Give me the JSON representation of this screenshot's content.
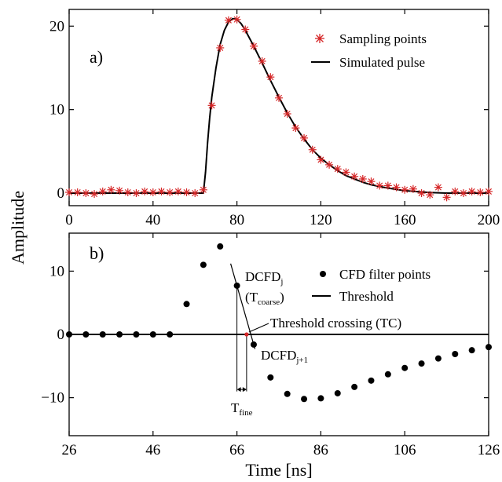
{
  "chart_data": [
    {
      "type": "scatter",
      "panel_label": "a)",
      "xlim": [
        0,
        200
      ],
      "ylim": [
        -1.5,
        22
      ],
      "xticks": [
        "0",
        "40",
        "80",
        "120",
        "160",
        "200"
      ],
      "yticks": [
        "0",
        "10",
        "20"
      ],
      "legend_position": "top-right",
      "series": [
        {
          "name": "Sampling points",
          "marker": "asterisk",
          "color": "#d62728",
          "x": [
            0,
            4,
            8,
            12,
            16,
            20,
            24,
            28,
            32,
            36,
            40,
            44,
            48,
            52,
            56,
            60,
            64,
            68,
            72,
            76,
            80,
            84,
            88,
            92,
            96,
            100,
            104,
            108,
            112,
            116,
            120,
            124,
            128,
            132,
            136,
            140,
            144,
            148,
            152,
            156,
            160,
            164,
            168,
            172,
            176,
            180,
            184,
            188,
            192,
            196,
            200
          ],
          "y": [
            0.1,
            0.1,
            0,
            -0.1,
            0.2,
            0.4,
            0.3,
            0.1,
            0,
            0.2,
            0.1,
            0.2,
            0.1,
            0.2,
            0.1,
            0,
            0.4,
            10.5,
            17.4,
            20.7,
            20.8,
            19.6,
            17.6,
            15.8,
            13.9,
            11.4,
            9.5,
            7.8,
            6.6,
            5.2,
            4.0,
            3.4,
            2.9,
            2.5,
            2.0,
            1.7,
            1.4,
            0.9,
            0.9,
            0.7,
            0.4,
            0.5,
            0,
            -0.2,
            0.7,
            -0.5,
            0.2,
            0,
            0.2,
            0.1,
            0.2
          ]
        },
        {
          "name": "Simulated pulse",
          "line": "solid",
          "color": "#000000",
          "x": [
            0,
            64,
            65,
            66,
            67,
            68,
            70,
            72,
            74,
            76,
            78,
            80,
            82,
            84,
            88,
            92,
            96,
            100,
            104,
            108,
            112,
            116,
            120,
            124,
            128,
            132,
            136,
            140,
            144,
            150,
            156,
            160,
            166,
            172,
            180,
            190,
            200
          ],
          "y": [
            0,
            0,
            2.5,
            6,
            9,
            11.5,
            15,
            17.8,
            19.5,
            20.5,
            20.9,
            20.8,
            20.3,
            19.5,
            17.6,
            15.6,
            13.5,
            11.5,
            9.6,
            7.9,
            6.5,
            5.2,
            4.2,
            3.4,
            2.7,
            2.1,
            1.7,
            1.3,
            1.0,
            0.7,
            0.45,
            0.3,
            0.18,
            0.08,
            0,
            0,
            0
          ]
        }
      ]
    },
    {
      "type": "scatter",
      "panel_label": "b)",
      "xlim": [
        26,
        126
      ],
      "ylim": [
        -16,
        16
      ],
      "xticks": [
        "26",
        "46",
        "66",
        "86",
        "106",
        "126"
      ],
      "yticks": [
        "−10",
        "0",
        "10"
      ],
      "xlabel": "Time [ns]",
      "legend_position": "top-right",
      "series": [
        {
          "name": "CFD filter points",
          "marker": "dot",
          "color": "#000000",
          "x": [
            26,
            30,
            34,
            38,
            42,
            46,
            50,
            54,
            58,
            62,
            66,
            70,
            74,
            78,
            82,
            86,
            90,
            94,
            98,
            102,
            106,
            110,
            114,
            118,
            122,
            126
          ],
          "y": [
            0,
            0,
            0,
            0,
            0,
            0,
            0,
            4.8,
            11,
            13.9,
            7.7,
            -1.6,
            -6.8,
            -9.4,
            -10.2,
            -10.1,
            -9.3,
            -8.3,
            -7.3,
            -6.3,
            -5.3,
            -4.6,
            -3.8,
            -3.1,
            -2.5,
            -2.0
          ]
        },
        {
          "name": "Threshold",
          "line": "solid",
          "color": "#000000",
          "x": [
            26,
            126
          ],
          "y": [
            0,
            0
          ]
        }
      ],
      "annotations": {
        "dcfd_j": "DCFD",
        "dcfd_j_sub": "j",
        "tcoarse_open": "(T",
        "tcoarse_sub": "coarse",
        "tcoarse_close": ")",
        "dcfd_j1": "DCFD",
        "dcfd_j1_sub": "j+1",
        "tc": "Threshold crossing (TC)",
        "tfine": "T",
        "tfine_sub": "fine",
        "tc_x": 68.3,
        "tc_color": "#d62728"
      }
    }
  ],
  "shared_ylabel": "Amplitude"
}
